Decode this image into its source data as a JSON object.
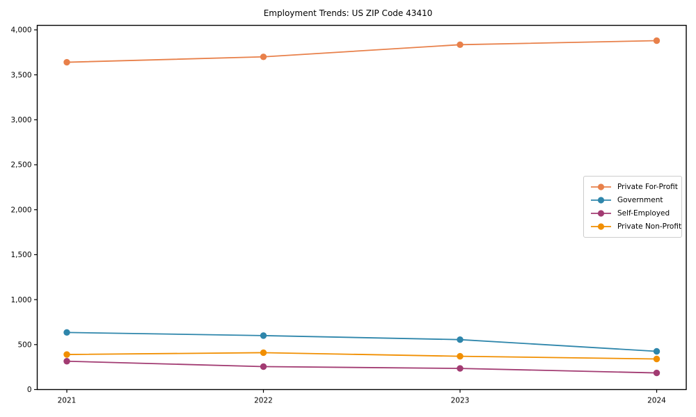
{
  "chart_data": {
    "type": "line",
    "title": "Employment Trends: US ZIP Code 43410",
    "categories": [
      "2021",
      "2022",
      "2023",
      "2024"
    ],
    "series": [
      {
        "name": "Private For-Profit",
        "color": "#e8804a",
        "values": [
          3640,
          3700,
          3835,
          3880
        ]
      },
      {
        "name": "Government",
        "color": "#2e86ab",
        "values": [
          635,
          600,
          555,
          425
        ]
      },
      {
        "name": "Self-Employed",
        "color": "#a23b72",
        "values": [
          315,
          255,
          235,
          185
        ]
      },
      {
        "name": "Private Non-Profit",
        "color": "#f18f01",
        "values": [
          390,
          410,
          370,
          340
        ]
      }
    ],
    "xlabel": "",
    "ylabel": "",
    "ylim": [
      0,
      4050
    ],
    "yticks": [
      0,
      500,
      1000,
      1500,
      2000,
      2500,
      3000,
      3500,
      4000
    ],
    "ytick_labels": [
      "0",
      "500",
      "1,000",
      "1,500",
      "2,000",
      "2,500",
      "3,000",
      "3,500",
      "4,000"
    ],
    "grid": false,
    "legend_position": "center-right",
    "axis_color": "#000000",
    "background_color": "#ffffff"
  }
}
